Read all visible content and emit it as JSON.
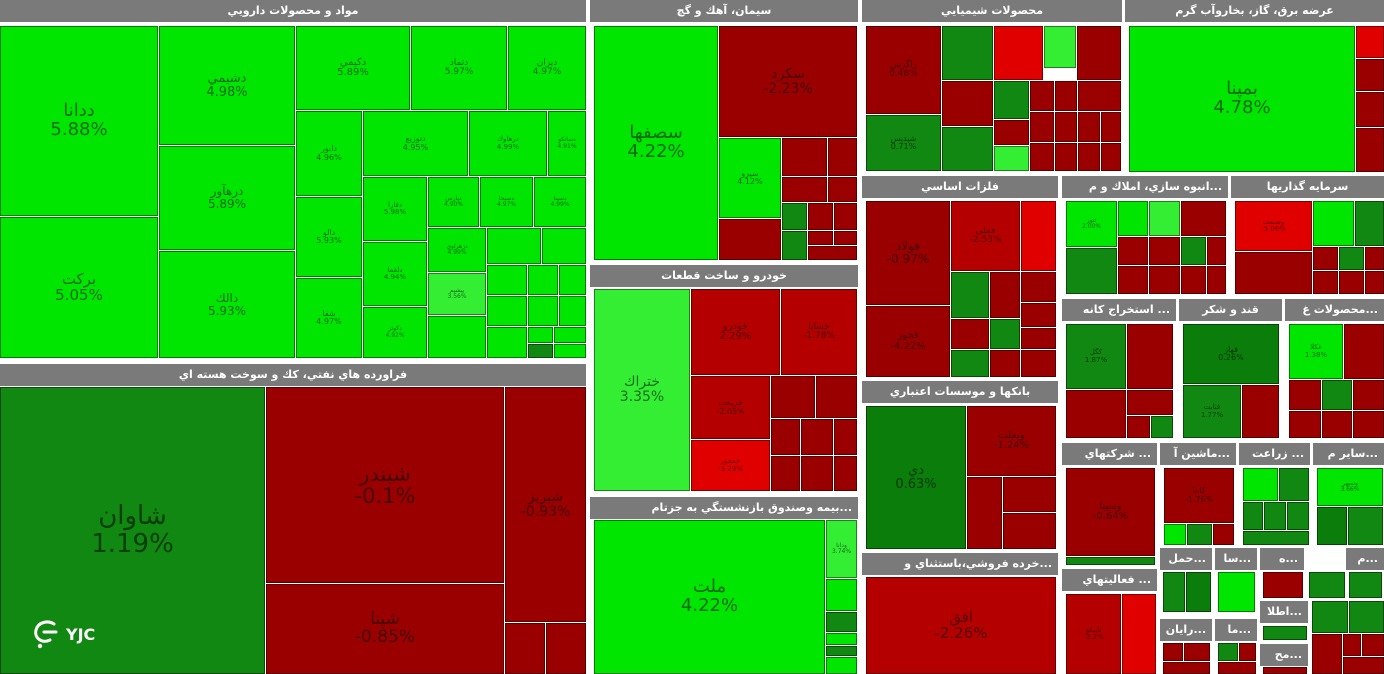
{
  "app": {
    "title": "Market Treemap"
  },
  "colors": {
    "green_bright": "#00e600",
    "green_light": "#33ee33",
    "green_dark": "#0b7d0b",
    "green_mid": "#118811",
    "red_dark": "#9b0000",
    "red_mid": "#b50000",
    "red_bright": "#e00000"
  },
  "logo": {
    "text": "YJC",
    "icon": "yjc-calligraphy-icon"
  },
  "sectors": {
    "pharma": {
      "title": "مواد و محصولات دارويي"
    },
    "oil": {
      "title": "فراورده هاي نفتي، كك و سوخت هسته اي"
    },
    "cement": {
      "title": "سيمان، آهك و گچ"
    },
    "auto": {
      "title": "خودرو و ساخت قطعات"
    },
    "insurance": {
      "title": "...بيمه وصندوق بازنشستگي به جزتام"
    },
    "chemical": {
      "title": "محصولات شيميايي"
    },
    "metals": {
      "title": "فلزات اساسي"
    },
    "banks": {
      "title": "بانكها و موسسات اعتباري"
    },
    "retail": {
      "title": "...خرده فروشي،باستثناي و"
    },
    "utility": {
      "title": "عرضه برق، گاز، بخاروآب گرم"
    },
    "realestate": {
      "title": "...انبوه سازي، املاك و م"
    },
    "investment": {
      "title": "سرمايه گذاريها"
    },
    "mining": {
      "title": "... استخراج كانه"
    },
    "sugar": {
      "title": "قند و شكر"
    },
    "food": {
      "title": "...محصولات غ"
    },
    "holding": {
      "title": "... شركتهاي"
    },
    "machinery": {
      "title": "...ماشين آ"
    },
    "agri": {
      "title": "... زراعت"
    },
    "other": {
      "title": "...ساير م"
    },
    "activity": {
      "title": "... فعاليتهاي"
    },
    "transport": {
      "title": "...حمل"
    },
    "s1": {
      "title": "...سا"
    },
    "s2": {
      "title": "...ه"
    },
    "s3": {
      "title": "...م"
    },
    "computer": {
      "title": "...رايان"
    },
    "s4": {
      "title": "...ما"
    },
    "info": {
      "title": "...اطلا"
    },
    "s5": {
      "title": "...مح"
    }
  },
  "tiles": {
    "ddana": {
      "name": "ددانا",
      "pct": "5.88%"
    },
    "dshimi": {
      "name": "دشيمي",
      "pct": "4.98%"
    },
    "dkimi": {
      "name": "دكيمي",
      "pct": "5.89%"
    },
    "dtmad": {
      "name": "دتماد",
      "pct": "5.97%"
    },
    "dizan": {
      "name": "ديزان",
      "pct": "4.97%"
    },
    "darhawer": {
      "name": "درهآور",
      "pct": "5.89%"
    },
    "barkat": {
      "name": "بركت",
      "pct": "5.05%"
    },
    "dalak": {
      "name": "دالك",
      "pct": "5.93%"
    },
    "dtoziy": {
      "name": "دتوزيع",
      "pct": "4.95%"
    },
    "darhawak": {
      "name": "درهاوك",
      "pct": "4.99%"
    },
    "dsanko": {
      "name": "دسانكو",
      "pct": "4.91%"
    },
    "dabur": {
      "name": "دابور",
      "pct": "4.96%"
    },
    "dalo": {
      "name": "دالو",
      "pct": "5.93%"
    },
    "shafa": {
      "name": "شفا",
      "pct": "4.97%"
    },
    "doskemi": {
      "name": "دسبحا",
      "pct": "4.97%"
    },
    "dfara": {
      "name": "دفارا",
      "pct": "5.98%"
    },
    "dpars": {
      "name": "دپارس",
      "pct": "4.90%"
    },
    "dlogm": {
      "name": "دلقما",
      "pct": "4.94%"
    },
    "dosina": {
      "name": "دسينا",
      "pct": "4.99%"
    },
    "dazahr": {
      "name": "دزهراوي",
      "pct": "4.99%"
    },
    "pishim": {
      "name": "پيشيم",
      "pct": "3.56%"
    },
    "dkosar": {
      "name": "دكوثر",
      "pct": "4.92%"
    },
    "shavan": {
      "name": "شاوان",
      "pct": "1.19%"
    },
    "shabandar": {
      "name": "شبندر",
      "pct": "-0.1%"
    },
    "sharan": {
      "name": "شبريز",
      "pct": "-0.93%"
    },
    "shpna": {
      "name": "شپنا",
      "pct": "-0.85%"
    },
    "sefaha": {
      "name": "سصفها",
      "pct": "4.22%"
    },
    "sekord": {
      "name": "سكرد",
      "pct": "-2.23%"
    },
    "separo": {
      "name": "سپرو",
      "pct": "4.12%"
    },
    "khtrak": {
      "name": "ختراك",
      "pct": "3.35%"
    },
    "khodro": {
      "name": "خودرو",
      "pct": "2.29%"
    },
    "khsapa": {
      "name": "خساپا",
      "pct": "-1.78%"
    },
    "kharkhi": {
      "name": "خريخت",
      "pct": "-2.05%"
    },
    "khmohr": {
      "name": "خمحور",
      "pct": "-3.29%"
    },
    "melat": {
      "name": "ملت",
      "pct": "4.22%"
    },
    "vdana": {
      "name": "ودانا",
      "pct": "3.74%"
    },
    "bama": {
      "name": "بمپنا",
      "pct": "4.78%"
    },
    "zagros": {
      "name": "زاگرس",
      "pct": "0.48%"
    },
    "shpdis": {
      "name": "شپديس",
      "pct": "0.71%"
    },
    "folad": {
      "name": "فولاد",
      "pct": "-0.97%"
    },
    "fameli": {
      "name": "فملي",
      "pct": "-2.53%"
    },
    "foulad2": {
      "name": "فخوز",
      "pct": "-4.22%"
    },
    "dey": {
      "name": "دي",
      "pct": "0.63%"
    },
    "vbmlt": {
      "name": "وبملت",
      "pct": "-1.24%"
    },
    "afaq": {
      "name": "افق",
      "pct": "-2.26%"
    },
    "vnoor": {
      "name": "ثنور",
      "pct": "2.00%"
    },
    "vsakhet": {
      "name": "وصنعت",
      "pct": "-5.06%"
    },
    "kegol": {
      "name": "كگل",
      "pct": "1.87%"
    },
    "ghazar": {
      "name": "قهاز",
      "pct": "0.26%"
    },
    "ghasab": {
      "name": "قثابت",
      "pct": "1.77%"
    },
    "gsaki": {
      "name": "غكلا",
      "pct": "1.38%"
    },
    "vsina": {
      "name": "وسينا",
      "pct": "-0.64%"
    },
    "khafaz": {
      "name": "كاما",
      "pct": "-1.76%"
    },
    "vsapa": {
      "name": "وسپهر",
      "pct": "3.66%"
    },
    "tapico": {
      "name": "تاپيكو",
      "pct": "-3.2%"
    }
  }
}
